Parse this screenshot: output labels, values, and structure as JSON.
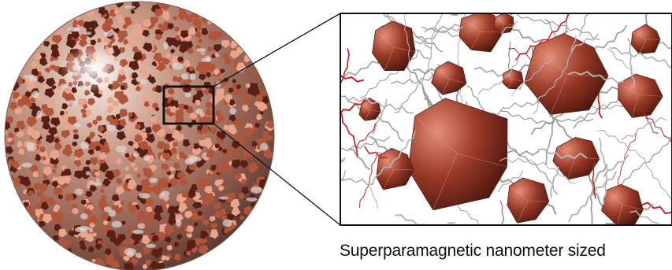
{
  "figure": {
    "caption": "Superparamagnetic nanometer sized",
    "colors": {
      "crystal": "#b0553a",
      "crystal_dark": "#5a1f14",
      "crystal_light": "#e9a58c",
      "polymer_chain": "#9a9a9a",
      "highlight_chain": "#c8201e",
      "outline": "#111111",
      "sphere_base": "#c9a394"
    }
  }
}
